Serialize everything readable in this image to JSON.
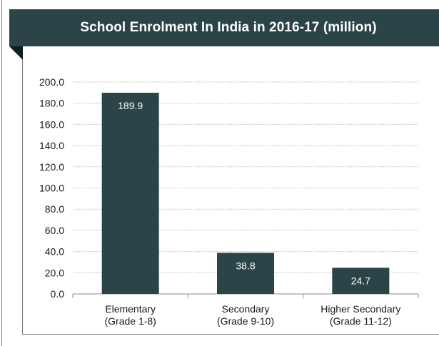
{
  "chart_data": {
    "type": "bar",
    "title": "School Enrolment In India in 2016-17 (million)",
    "categories": [
      [
        "Elementary",
        "(Grade 1-8)"
      ],
      [
        "Secondary",
        "(Grade 9-10)"
      ],
      [
        "Higher Secondary",
        "(Grade 11-12)"
      ]
    ],
    "values": [
      189.9,
      38.8,
      24.7
    ],
    "data_labels": [
      "189.9",
      "38.8",
      "24.7"
    ],
    "yticks": [
      "0.0",
      "20.0",
      "40.0",
      "60.0",
      "80.0",
      "100.0",
      "120.0",
      "140.0",
      "160.0",
      "180.0",
      "200.0"
    ],
    "ylim": [
      0,
      200
    ],
    "grid": true,
    "legend": "none",
    "xlabel": "",
    "ylabel": "",
    "colors": {
      "bar": "#2a4448",
      "banner": "#2a4448",
      "grid": "#bfbfbf"
    }
  }
}
